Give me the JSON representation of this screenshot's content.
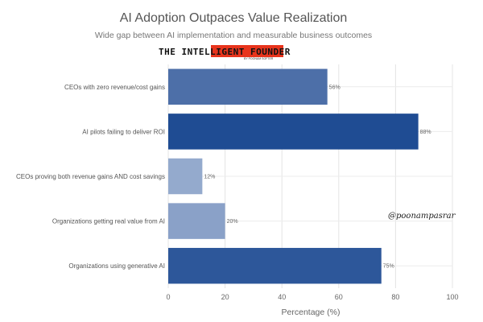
{
  "chart_data": {
    "type": "bar",
    "orientation": "horizontal",
    "title": "AI Adoption Outpaces Value Realization",
    "subtitle": "Wide gap between AI implementation and measurable business outcomes",
    "xlabel": "Percentage (%)",
    "ylabel": "",
    "xlim": [
      0,
      100
    ],
    "xticks": [
      0,
      20,
      40,
      60,
      80,
      100
    ],
    "grid": true,
    "categories": [
      "CEOs with zero revenue/cost gains",
      "AI pilots failing to deliver ROI",
      "CEOs proving both revenue gains AND cost savings",
      "Organizations getting real value from AI",
      "Organizations using generative AI"
    ],
    "values": [
      56,
      88,
      12,
      20,
      75
    ],
    "value_labels": [
      "56%",
      "88%",
      "12%",
      "20%",
      "75%"
    ],
    "bar_colors": [
      "#4d6fa8",
      "#1f4c93",
      "#94aacd",
      "#8aa1c8",
      "#2d579a"
    ]
  },
  "watermarks": {
    "brand": "THE INTELLIGENT FOUNDER",
    "brand_sub": "BY POONAM SOFTER",
    "brand_highlight_color": "#e8341c",
    "handle": "@poonampasrar"
  }
}
